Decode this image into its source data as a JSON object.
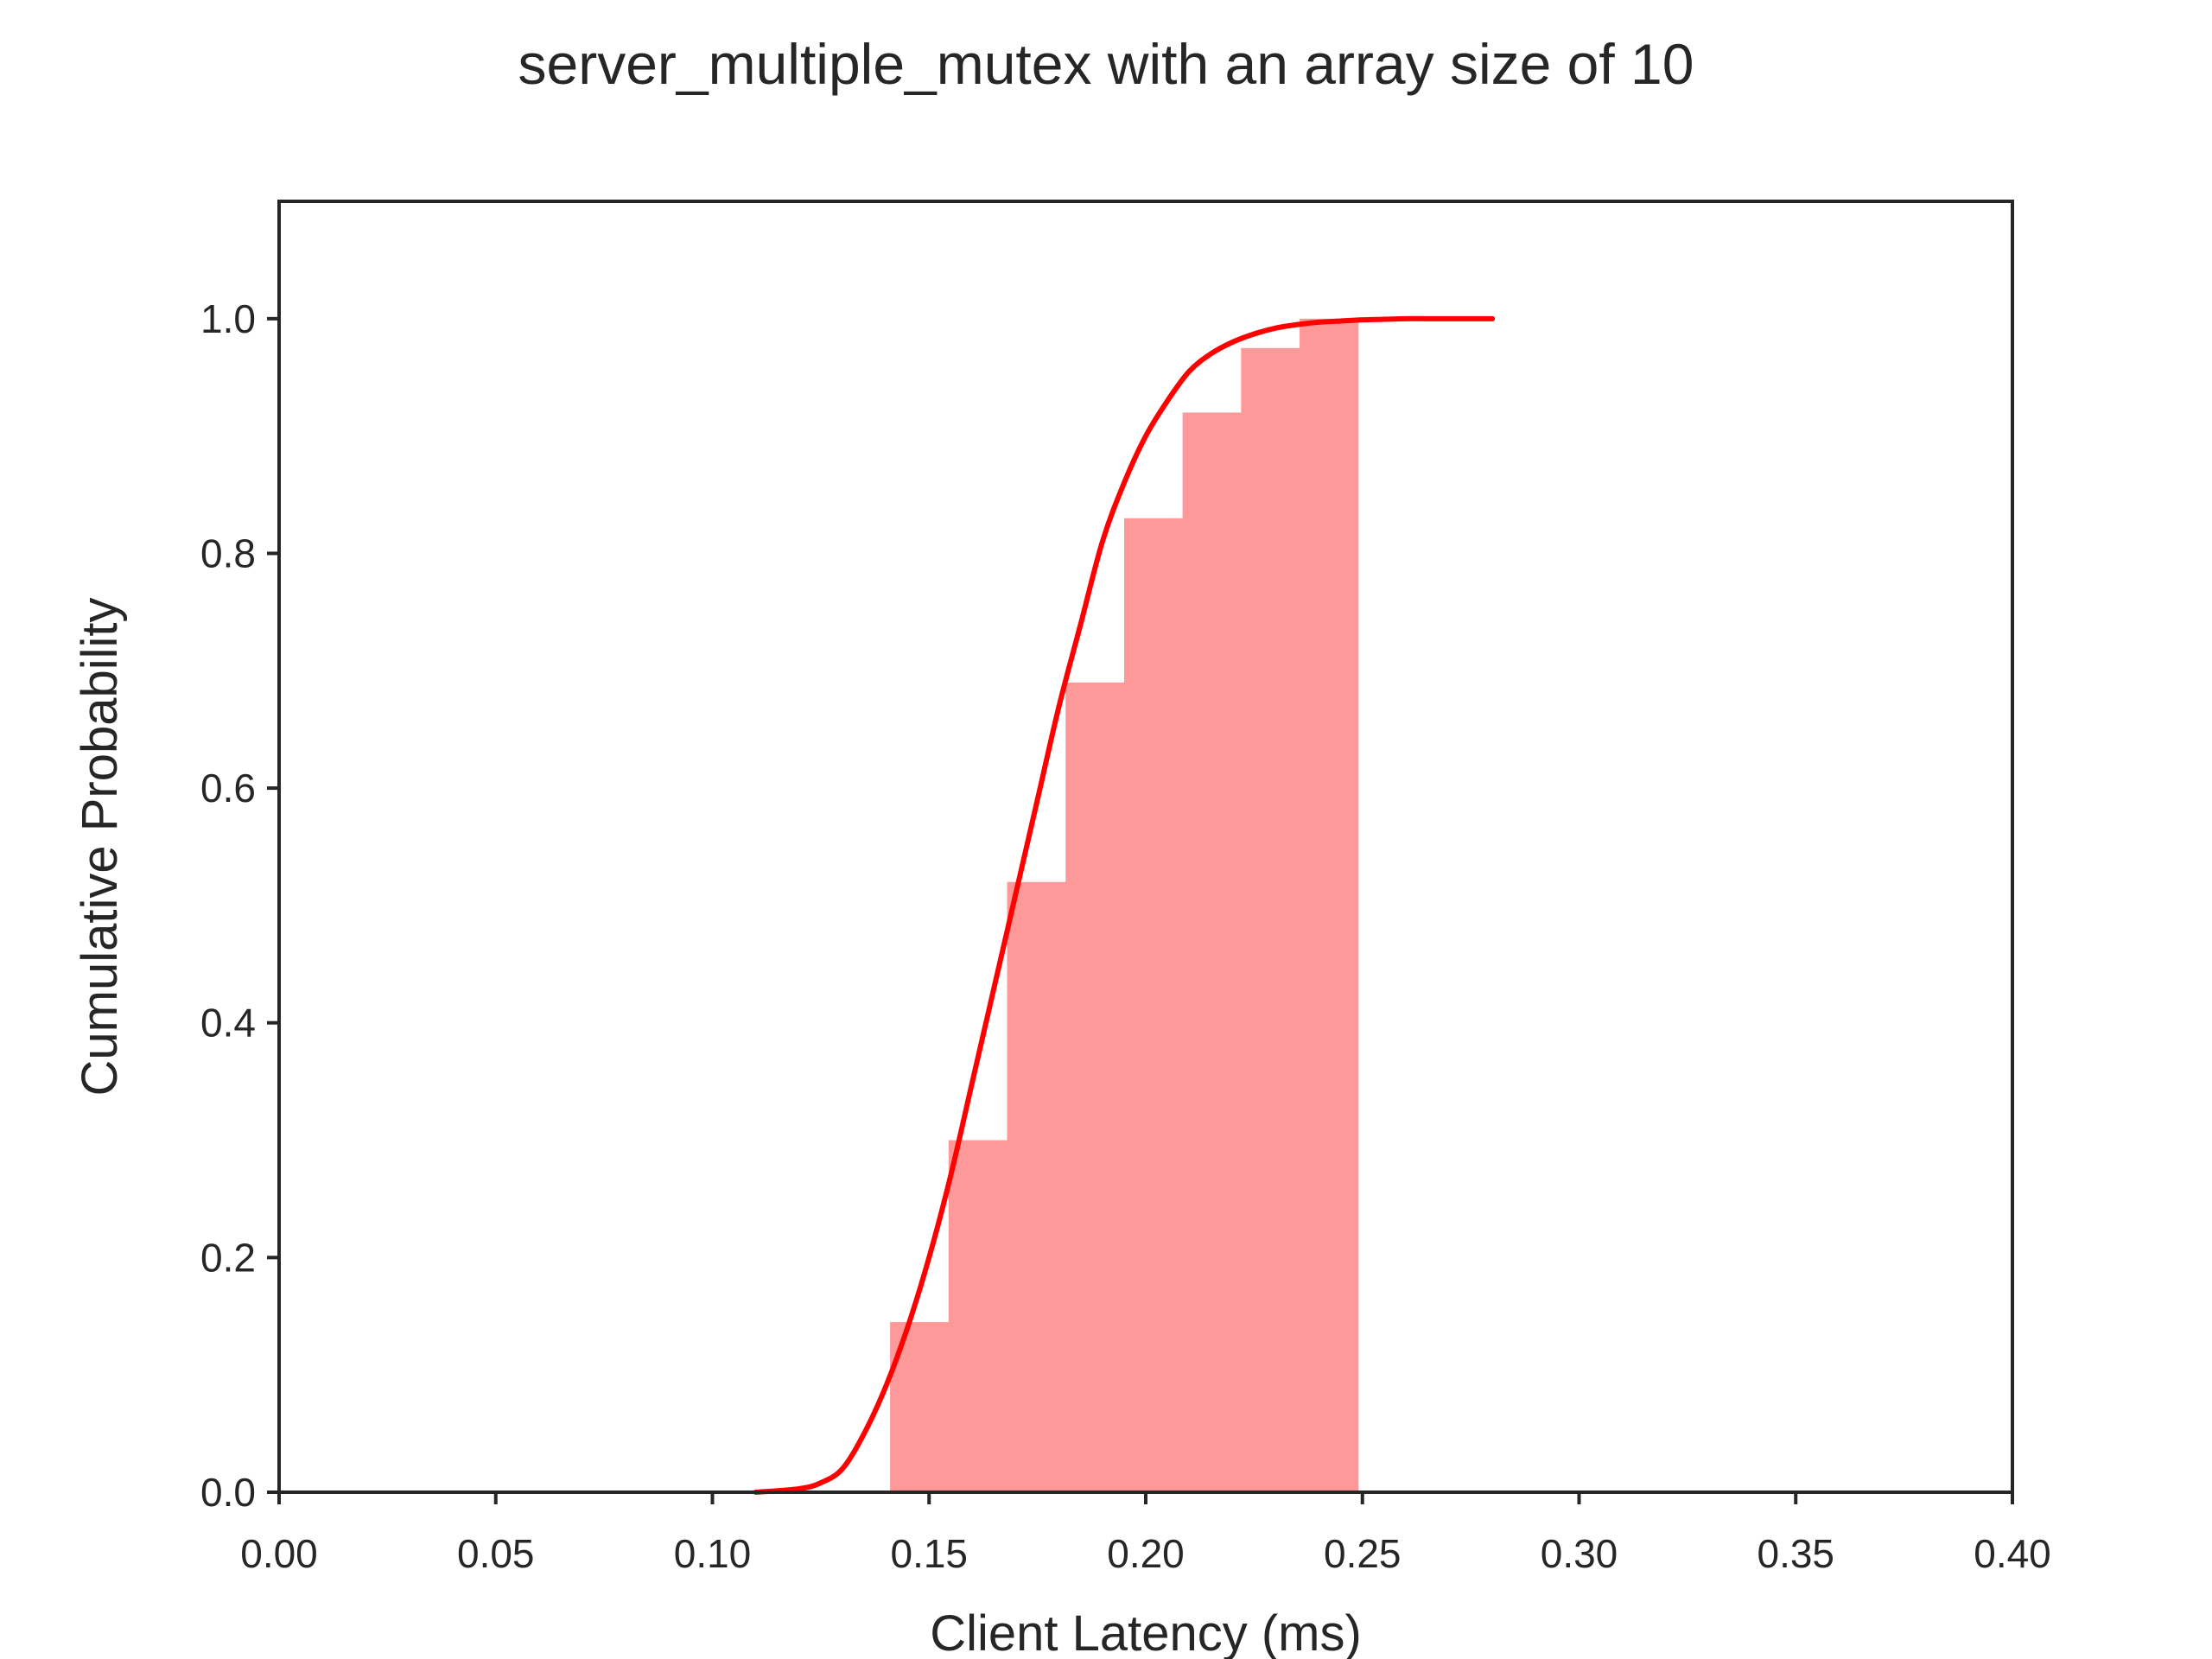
{
  "chart_data": {
    "type": "bar",
    "title": "server_multiple_mutex with an array size of 10",
    "xlabel": "Client Latency (ms)",
    "ylabel": "Cumulative Probability",
    "xlim": [
      0.0,
      0.4
    ],
    "ylim": [
      0.0,
      1.1
    ],
    "xticks": [
      "0.00",
      "0.05",
      "0.10",
      "0.15",
      "0.20",
      "0.25",
      "0.30",
      "0.35",
      "0.40"
    ],
    "yticks": [
      "0.0",
      "0.2",
      "0.4",
      "0.6",
      "0.8",
      "1.0"
    ],
    "grid": false,
    "colors": {
      "bars": "#ff9999",
      "curve": "#ff0000",
      "axes": "#262626"
    },
    "histogram": {
      "name": "",
      "bin_edges": [
        0.141,
        0.1545,
        0.168,
        0.1815,
        0.195,
        0.2085,
        0.222,
        0.2355,
        0.249
      ],
      "values": [
        0.145,
        0.3,
        0.52,
        0.69,
        0.83,
        0.92,
        0.975,
        1.0
      ]
    },
    "curve": {
      "name": "",
      "x": [
        0.11,
        0.12,
        0.125,
        0.13,
        0.135,
        0.14,
        0.145,
        0.15,
        0.155,
        0.16,
        0.165,
        0.17,
        0.175,
        0.18,
        0.185,
        0.19,
        0.195,
        0.2,
        0.205,
        0.21,
        0.215,
        0.22,
        0.225,
        0.23,
        0.235,
        0.24,
        0.245,
        0.25,
        0.255,
        0.26,
        0.265,
        0.27,
        0.28
      ],
      "y": [
        0.0,
        0.003,
        0.008,
        0.02,
        0.05,
        0.09,
        0.14,
        0.2,
        0.27,
        0.35,
        0.43,
        0.51,
        0.59,
        0.67,
        0.74,
        0.81,
        0.86,
        0.9,
        0.93,
        0.955,
        0.97,
        0.98,
        0.987,
        0.992,
        0.995,
        0.997,
        0.998,
        0.999,
        0.9995,
        1.0,
        1.0,
        1.0,
        1.0
      ]
    }
  }
}
